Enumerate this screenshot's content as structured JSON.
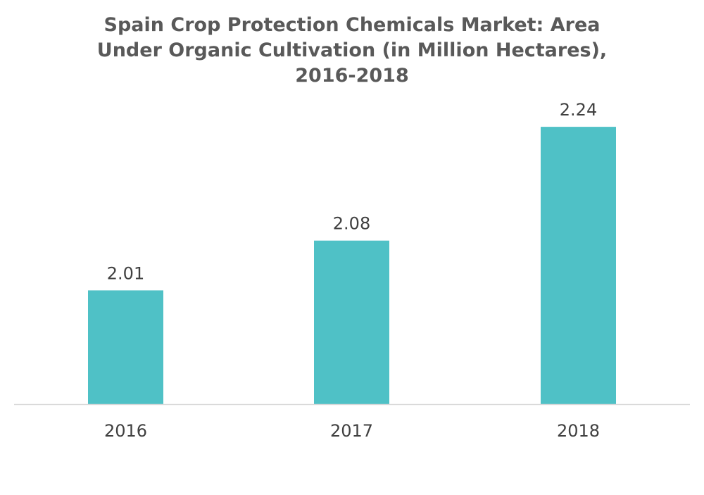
{
  "chart_data": {
    "type": "bar",
    "title_lines": [
      "Spain Crop Protection Chemicals Market: Area",
      "Under Organic Cultivation (in Million Hectares),",
      "2016-2018"
    ],
    "categories": [
      "2016",
      "2017",
      "2018"
    ],
    "values": [
      2.01,
      2.08,
      2.24
    ],
    "data_labels": [
      "2.01",
      "2.08",
      "2.24"
    ],
    "xlabel": "",
    "ylabel": "",
    "ylim": [
      1.85,
      2.25
    ],
    "grid": false,
    "legend": "none",
    "bar_color": "#4FC1C6",
    "axis_color": "#D9D9D9"
  }
}
